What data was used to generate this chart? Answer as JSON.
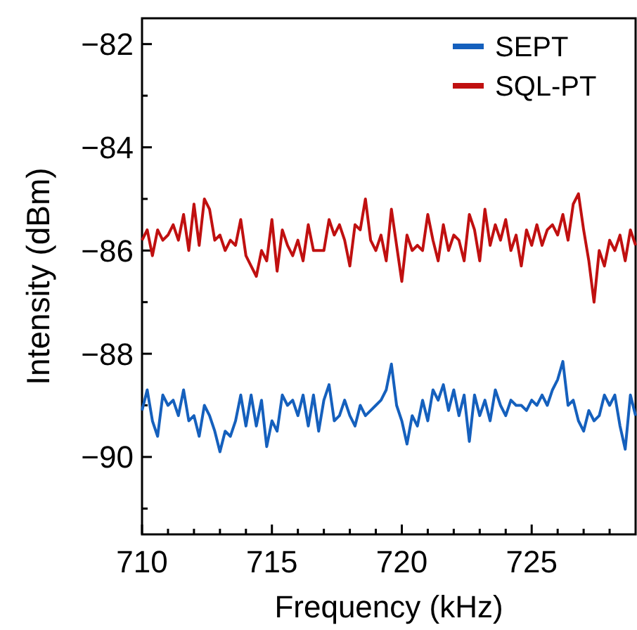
{
  "chart_data": {
    "type": "line",
    "xlabel": "Frequency (kHz)",
    "ylabel": "Intensity (dBm)",
    "x": [
      710.0,
      710.2,
      710.4,
      710.6,
      710.8,
      711.0,
      711.2,
      711.4,
      711.6,
      711.8,
      712.0,
      712.2,
      712.4,
      712.6,
      712.8,
      713.0,
      713.2,
      713.4,
      713.6,
      713.8,
      714.0,
      714.2,
      714.4,
      714.6,
      714.8,
      715.0,
      715.2,
      715.4,
      715.6,
      715.8,
      716.0,
      716.2,
      716.4,
      716.6,
      716.8,
      717.0,
      717.2,
      717.4,
      717.6,
      717.8,
      718.0,
      718.2,
      718.4,
      718.6,
      718.8,
      719.0,
      719.2,
      719.4,
      719.6,
      719.8,
      720.0,
      720.2,
      720.4,
      720.6,
      720.8,
      721.0,
      721.2,
      721.4,
      721.6,
      721.8,
      722.0,
      722.2,
      722.4,
      722.6,
      722.8,
      723.0,
      723.2,
      723.4,
      723.6,
      723.8,
      724.0,
      724.2,
      724.4,
      724.6,
      724.8,
      725.0,
      725.2,
      725.4,
      725.6,
      725.8,
      726.0,
      726.2,
      726.4,
      726.6,
      726.8,
      727.0,
      727.2,
      727.4,
      727.6,
      727.8,
      728.0,
      728.2,
      728.4,
      728.6,
      728.8,
      729.0
    ],
    "series": [
      {
        "name": "SEPT",
        "color": "#1560bd",
        "values": [
          -89.1,
          -88.7,
          -89.3,
          -89.6,
          -88.8,
          -89.0,
          -88.9,
          -89.2,
          -88.7,
          -89.3,
          -89.2,
          -89.6,
          -89.0,
          -89.2,
          -89.5,
          -89.9,
          -89.5,
          -89.6,
          -89.3,
          -88.8,
          -89.4,
          -88.8,
          -89.4,
          -88.9,
          -89.8,
          -89.3,
          -89.5,
          -88.8,
          -89.0,
          -88.9,
          -89.2,
          -88.8,
          -89.4,
          -88.8,
          -89.5,
          -88.9,
          -88.6,
          -89.3,
          -89.2,
          -88.9,
          -89.2,
          -89.4,
          -89.0,
          -89.2,
          -89.1,
          -89.0,
          -88.9,
          -88.7,
          -88.2,
          -89.0,
          -89.3,
          -89.75,
          -89.2,
          -89.4,
          -88.9,
          -89.3,
          -88.7,
          -88.9,
          -88.6,
          -89.1,
          -88.7,
          -89.2,
          -88.8,
          -89.7,
          -88.8,
          -89.2,
          -88.9,
          -89.3,
          -88.7,
          -89.0,
          -89.2,
          -88.9,
          -89.0,
          -89.0,
          -89.1,
          -88.9,
          -89.0,
          -88.8,
          -89.0,
          -88.7,
          -88.5,
          -88.15,
          -89.0,
          -88.9,
          -89.3,
          -89.5,
          -89.1,
          -89.3,
          -89.2,
          -88.8,
          -89.0,
          -88.8,
          -89.4,
          -89.85,
          -88.8,
          -89.2
        ]
      },
      {
        "name": "SQL-PT",
        "color": "#c01010",
        "values": [
          -85.8,
          -85.6,
          -86.1,
          -85.6,
          -85.8,
          -85.7,
          -85.5,
          -85.8,
          -85.3,
          -86.0,
          -85.1,
          -85.9,
          -85.0,
          -85.2,
          -85.8,
          -85.7,
          -86.0,
          -85.8,
          -85.9,
          -85.4,
          -86.1,
          -86.3,
          -86.5,
          -86.0,
          -86.2,
          -85.4,
          -86.4,
          -85.6,
          -85.9,
          -86.1,
          -85.8,
          -86.2,
          -85.5,
          -86.0,
          -86.0,
          -86.0,
          -85.4,
          -85.7,
          -85.5,
          -85.8,
          -86.3,
          -85.5,
          -85.6,
          -85.0,
          -85.8,
          -86.0,
          -85.7,
          -86.2,
          -85.2,
          -85.9,
          -86.6,
          -85.7,
          -86.0,
          -85.9,
          -86.0,
          -85.3,
          -85.8,
          -86.2,
          -85.5,
          -86.0,
          -85.7,
          -85.8,
          -86.2,
          -85.3,
          -85.6,
          -86.2,
          -85.2,
          -85.9,
          -85.5,
          -85.8,
          -85.4,
          -86.0,
          -85.7,
          -86.3,
          -85.6,
          -85.9,
          -85.5,
          -85.9,
          -85.6,
          -85.5,
          -85.7,
          -85.3,
          -85.8,
          -85.1,
          -84.9,
          -85.6,
          -86.2,
          -87.0,
          -86.0,
          -86.3,
          -85.8,
          -86.0,
          -85.7,
          -86.2,
          -85.6,
          -85.9
        ]
      }
    ],
    "xlim": [
      710,
      729
    ],
    "xticks": [
      710,
      {
        "value": 711,
        "label": null
      },
      {
        "value": 712,
        "label": null
      },
      {
        "value": 713,
        "label": null
      },
      {
        "value": 714,
        "label": null
      },
      715,
      {
        "value": 716,
        "label": null
      },
      {
        "value": 717,
        "label": null
      },
      {
        "value": 718,
        "label": null
      },
      {
        "value": 719,
        "label": null
      },
      720,
      {
        "value": 721,
        "label": null
      },
      {
        "value": 722,
        "label": null
      },
      {
        "value": 723,
        "label": null
      },
      {
        "value": 724,
        "label": null
      },
      725,
      {
        "value": 726,
        "label": null
      },
      {
        "value": 727,
        "label": null
      },
      {
        "value": 728,
        "label": null
      }
    ],
    "ylim": [
      -91.5,
      -81.5
    ],
    "yticks": [
      {
        "value": -91,
        "label": null
      },
      {
        "value": -90,
        "label": "−90"
      },
      {
        "value": -89,
        "label": null
      },
      {
        "value": -88,
        "label": "−88"
      },
      {
        "value": -87,
        "label": null
      },
      {
        "value": -86,
        "label": "−86"
      },
      {
        "value": -85,
        "label": null
      },
      {
        "value": -84,
        "label": "−84"
      },
      {
        "value": -83,
        "label": null
      },
      {
        "value": -82,
        "label": "−82"
      }
    ],
    "grid": false,
    "legend": "top right",
    "marker": "none",
    "line_style": "solid"
  }
}
